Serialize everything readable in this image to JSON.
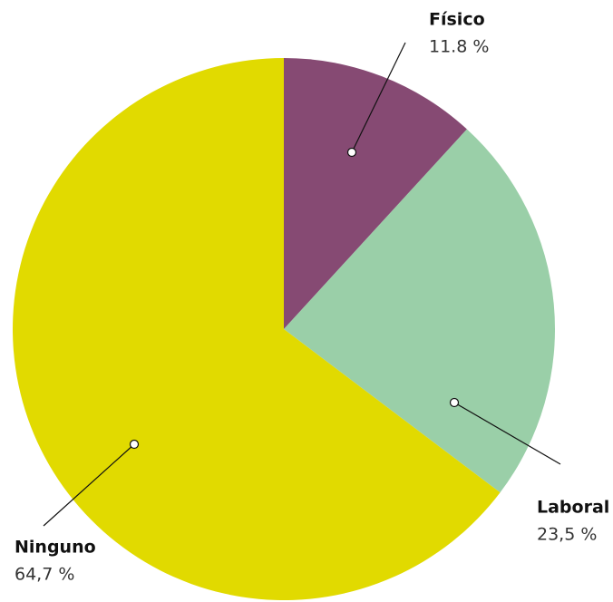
{
  "chart_data": {
    "type": "pie",
    "categories": [
      "Físico",
      "Laboral",
      "Ninguno"
    ],
    "values": [
      11.8,
      23.5,
      64.7
    ],
    "value_labels": [
      "11.8 %",
      "23,5 %",
      "64,7 %"
    ],
    "colors": [
      "#864a73",
      "#9acfa8",
      "#e1da00"
    ]
  }
}
